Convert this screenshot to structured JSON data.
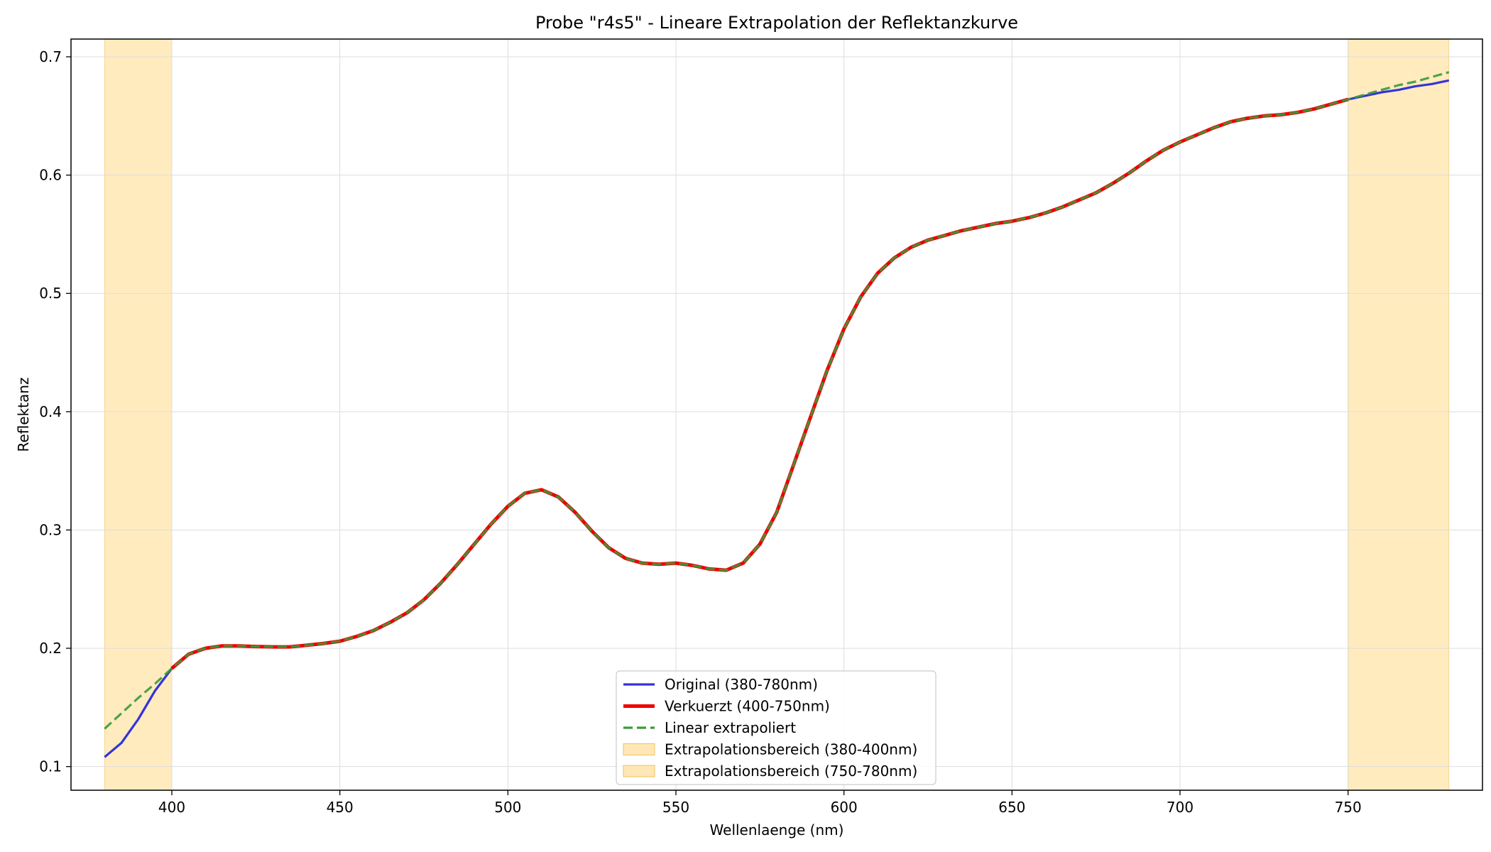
{
  "chart_data": {
    "type": "line",
    "title": "Probe \"r4s5\" - Lineare Extrapolation der Reflektanzkurve",
    "xlabel": "Wellenlaenge (nm)",
    "ylabel": "Reflektanz",
    "xlim": [
      370,
      790
    ],
    "ylim": [
      0.08,
      0.715
    ],
    "xticks": [
      400,
      450,
      500,
      550,
      600,
      650,
      700,
      750
    ],
    "yticks": [
      0.1,
      0.2,
      0.3,
      0.4,
      0.5,
      0.6,
      0.7
    ],
    "grid": true,
    "legend_position": "lower-center",
    "shaded_regions": [
      {
        "name": "Extrapolationsbereich (380-400nm)",
        "x_range": [
          380,
          400
        ],
        "color": "#ffe4a8"
      },
      {
        "name": "Extrapolationsbereich (750-780nm)",
        "x_range": [
          750,
          780
        ],
        "color": "#ffe4a8"
      }
    ],
    "series": [
      {
        "name": "Original (380-780nm)",
        "color": "#3333dd",
        "style": "solid",
        "x": [
          380,
          385,
          390,
          395,
          400,
          405,
          410,
          415,
          420,
          425,
          430,
          435,
          440,
          445,
          450,
          455,
          460,
          465,
          470,
          475,
          480,
          485,
          490,
          495,
          500,
          505,
          510,
          515,
          520,
          525,
          530,
          535,
          540,
          545,
          550,
          555,
          560,
          565,
          570,
          575,
          580,
          585,
          590,
          595,
          600,
          605,
          610,
          615,
          620,
          625,
          630,
          635,
          640,
          645,
          650,
          655,
          660,
          665,
          670,
          675,
          680,
          685,
          690,
          695,
          700,
          705,
          710,
          715,
          720,
          725,
          730,
          735,
          740,
          745,
          750,
          755,
          760,
          765,
          770,
          775,
          780
        ],
        "values": [
          0.108,
          0.12,
          0.14,
          0.164,
          0.183,
          0.195,
          0.2,
          0.202,
          0.202,
          0.2015,
          0.2012,
          0.2012,
          0.2025,
          0.204,
          0.206,
          0.21,
          0.215,
          0.222,
          0.23,
          0.241,
          0.255,
          0.271,
          0.288,
          0.305,
          0.32,
          0.331,
          0.334,
          0.328,
          0.315,
          0.299,
          0.285,
          0.276,
          0.272,
          0.271,
          0.272,
          0.27,
          0.267,
          0.266,
          0.272,
          0.288,
          0.315,
          0.355,
          0.395,
          0.435,
          0.47,
          0.497,
          0.517,
          0.53,
          0.539,
          0.545,
          0.549,
          0.553,
          0.556,
          0.559,
          0.561,
          0.564,
          0.568,
          0.573,
          0.579,
          0.585,
          0.593,
          0.602,
          0.612,
          0.621,
          0.628,
          0.634,
          0.64,
          0.645,
          0.648,
          0.65,
          0.651,
          0.653,
          0.656,
          0.66,
          0.664,
          0.667,
          0.67,
          0.672,
          0.675,
          0.677,
          0.68
        ]
      },
      {
        "name": "Verkuerzt (400-750nm)",
        "color": "#ee0000",
        "style": "solid-thick",
        "x": [
          400,
          405,
          410,
          415,
          420,
          425,
          430,
          435,
          440,
          445,
          450,
          455,
          460,
          465,
          470,
          475,
          480,
          485,
          490,
          495,
          500,
          505,
          510,
          515,
          520,
          525,
          530,
          535,
          540,
          545,
          550,
          555,
          560,
          565,
          570,
          575,
          580,
          585,
          590,
          595,
          600,
          605,
          610,
          615,
          620,
          625,
          630,
          635,
          640,
          645,
          650,
          655,
          660,
          665,
          670,
          675,
          680,
          685,
          690,
          695,
          700,
          705,
          710,
          715,
          720,
          725,
          730,
          735,
          740,
          745,
          750
        ],
        "values": [
          0.183,
          0.195,
          0.2,
          0.202,
          0.202,
          0.2015,
          0.2012,
          0.2012,
          0.2025,
          0.204,
          0.206,
          0.21,
          0.215,
          0.222,
          0.23,
          0.241,
          0.255,
          0.271,
          0.288,
          0.305,
          0.32,
          0.331,
          0.334,
          0.328,
          0.315,
          0.299,
          0.285,
          0.276,
          0.272,
          0.271,
          0.272,
          0.27,
          0.267,
          0.266,
          0.272,
          0.288,
          0.315,
          0.355,
          0.395,
          0.435,
          0.47,
          0.497,
          0.517,
          0.53,
          0.539,
          0.545,
          0.549,
          0.553,
          0.556,
          0.559,
          0.561,
          0.564,
          0.568,
          0.573,
          0.579,
          0.585,
          0.593,
          0.602,
          0.612,
          0.621,
          0.628,
          0.634,
          0.64,
          0.645,
          0.648,
          0.65,
          0.651,
          0.653,
          0.656,
          0.66,
          0.664
        ]
      },
      {
        "name": "Linear extrapoliert",
        "color": "#3a9a3a",
        "style": "dashed",
        "x": [
          380,
          385,
          390,
          395,
          400,
          405,
          410,
          415,
          420,
          425,
          430,
          435,
          440,
          445,
          450,
          455,
          460,
          465,
          470,
          475,
          480,
          485,
          490,
          495,
          500,
          505,
          510,
          515,
          520,
          525,
          530,
          535,
          540,
          545,
          550,
          555,
          560,
          565,
          570,
          575,
          580,
          585,
          590,
          595,
          600,
          605,
          610,
          615,
          620,
          625,
          630,
          635,
          640,
          645,
          650,
          655,
          660,
          665,
          670,
          675,
          680,
          685,
          690,
          695,
          700,
          705,
          710,
          715,
          720,
          725,
          730,
          735,
          740,
          745,
          750,
          755,
          760,
          765,
          770,
          775,
          780
        ],
        "values": [
          0.132,
          0.145,
          0.158,
          0.17,
          0.183,
          0.195,
          0.2,
          0.202,
          0.202,
          0.2015,
          0.2012,
          0.2012,
          0.2025,
          0.204,
          0.206,
          0.21,
          0.215,
          0.222,
          0.23,
          0.241,
          0.255,
          0.271,
          0.288,
          0.305,
          0.32,
          0.331,
          0.334,
          0.328,
          0.315,
          0.299,
          0.285,
          0.276,
          0.272,
          0.271,
          0.272,
          0.27,
          0.267,
          0.266,
          0.272,
          0.288,
          0.315,
          0.355,
          0.395,
          0.435,
          0.47,
          0.497,
          0.517,
          0.53,
          0.539,
          0.545,
          0.549,
          0.553,
          0.556,
          0.559,
          0.561,
          0.564,
          0.568,
          0.573,
          0.579,
          0.585,
          0.593,
          0.602,
          0.612,
          0.621,
          0.628,
          0.634,
          0.64,
          0.645,
          0.648,
          0.65,
          0.651,
          0.653,
          0.656,
          0.66,
          0.664,
          0.668,
          0.672,
          0.676,
          0.679,
          0.683,
          0.687
        ]
      }
    ]
  }
}
